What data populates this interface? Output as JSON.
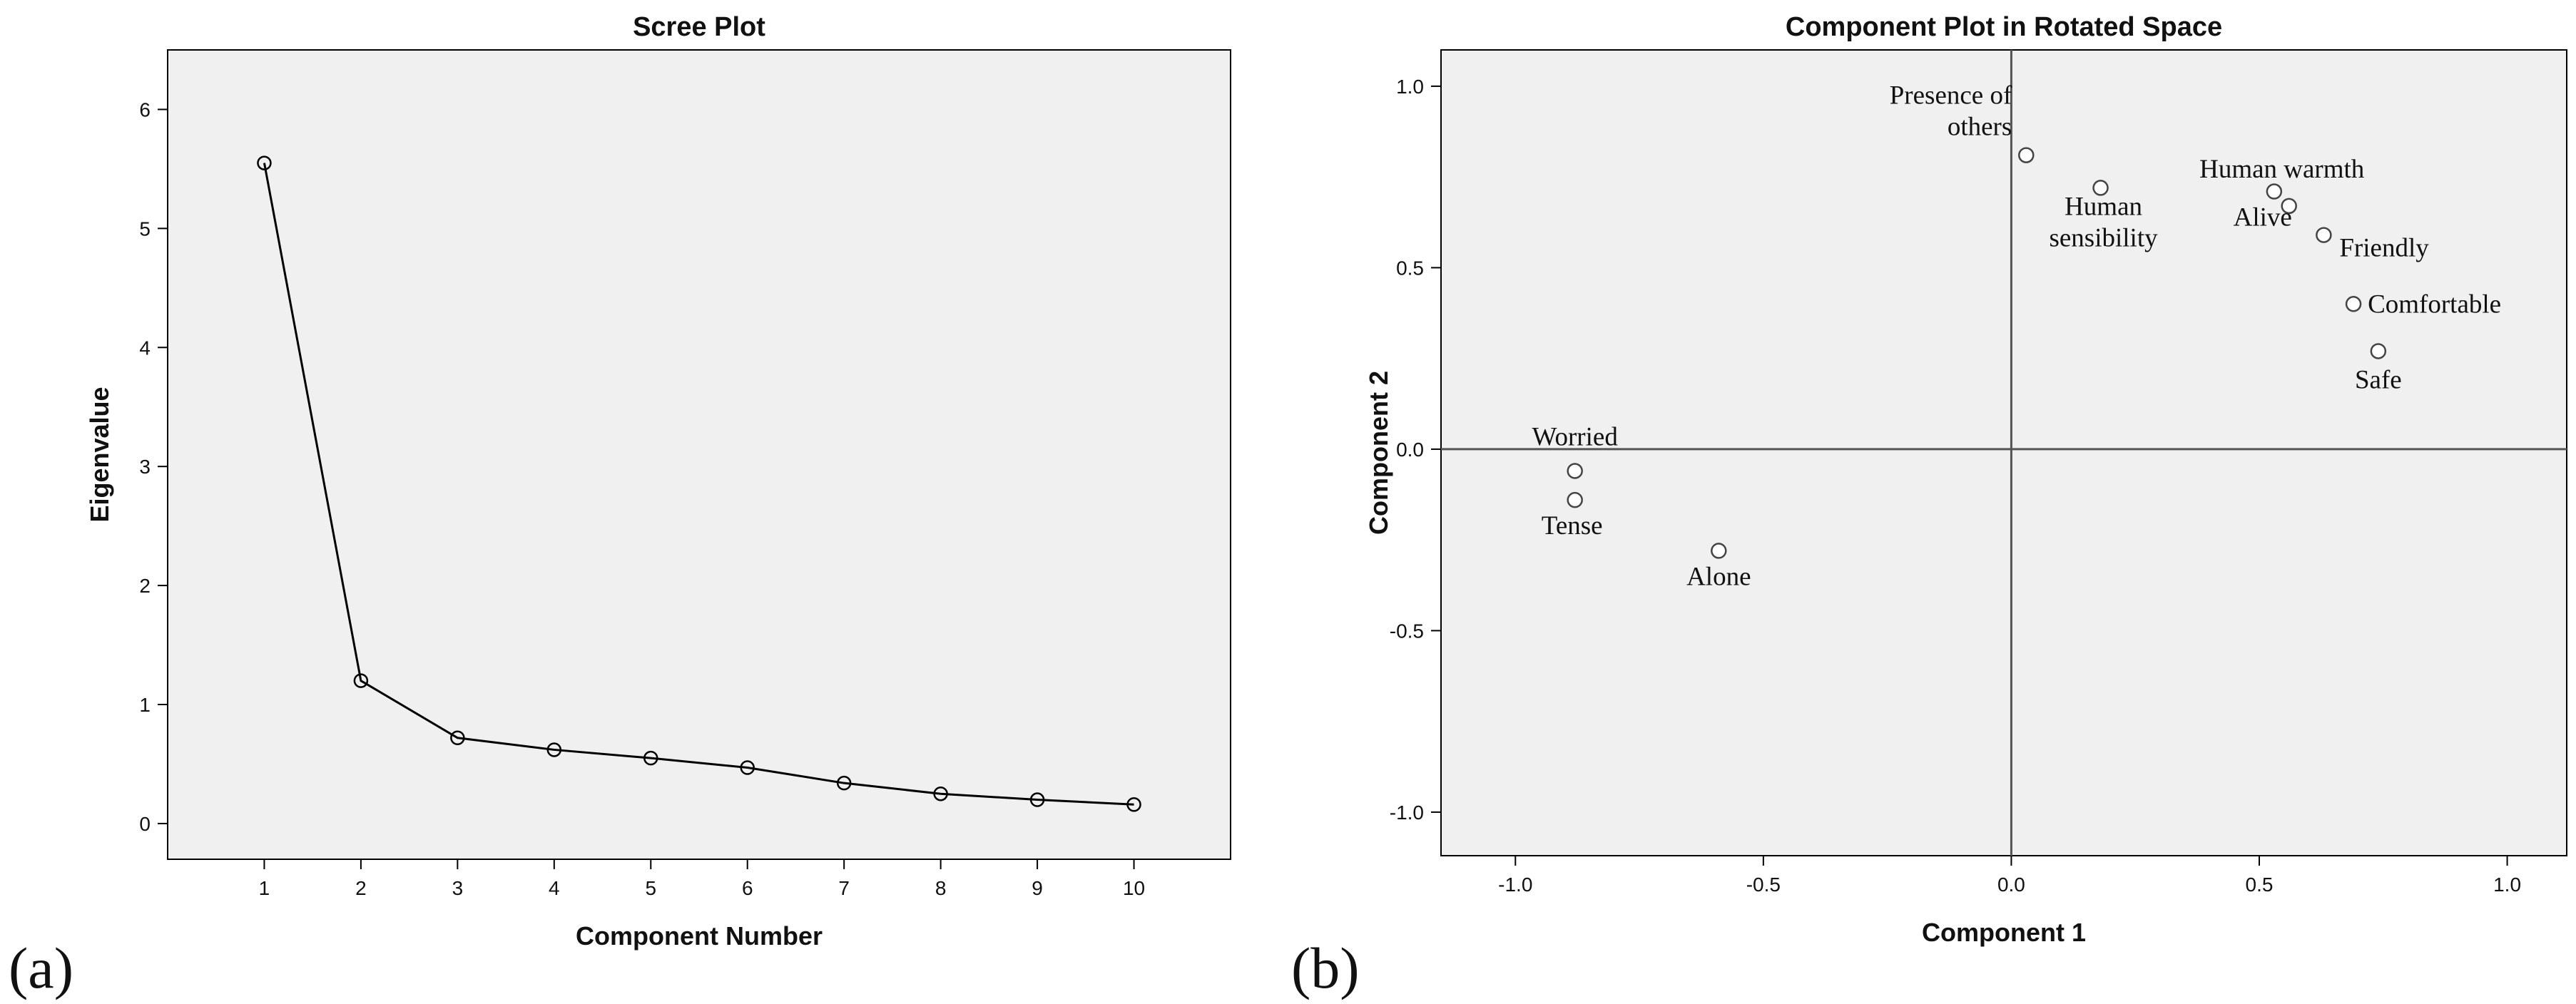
{
  "panel_labels": [
    "(a)",
    "(b)"
  ],
  "colors": {
    "plot_background": "#f0f0f0",
    "frame": "#000000",
    "line": "#000000",
    "marker": "#ffffff",
    "text": "#111111"
  },
  "chart_data": [
    {
      "type": "line",
      "title": "Scree Plot",
      "xlabel": "Component Number",
      "ylabel": "Eigenvalue",
      "x": [
        1,
        2,
        3,
        4,
        5,
        6,
        7,
        8,
        9,
        10
      ],
      "values": [
        5.55,
        1.2,
        0.72,
        0.62,
        0.55,
        0.47,
        0.34,
        0.25,
        0.2,
        0.16
      ],
      "xlim": [
        0,
        11
      ],
      "ylim": [
        -0.3,
        6.5
      ],
      "x_ticks": [
        "1",
        "2",
        "3",
        "4",
        "5",
        "6",
        "7",
        "8",
        "9",
        "10"
      ],
      "y_ticks": [
        "0",
        "1",
        "2",
        "3",
        "4",
        "5",
        "6"
      ],
      "marker": "open-circle",
      "grid": false,
      "legend": "none"
    },
    {
      "type": "scatter",
      "title": "Component Plot in Rotated Space",
      "xlabel": "Component 1",
      "ylabel": "Component 2",
      "xlim": [
        -1.15,
        1.12
      ],
      "ylim": [
        -1.12,
        1.1
      ],
      "x_ticks": [
        "-1.0",
        "-0.5",
        "0.0",
        "0.5",
        "1.0"
      ],
      "y_ticks": [
        "-1.0",
        "-0.5",
        "0.0",
        "0.5",
        "1.0"
      ],
      "reference_lines": {
        "x": 0,
        "y": 0
      },
      "grid": false,
      "legend": "none",
      "points": [
        {
          "label": "Presence of others",
          "label_lines": [
            "Presence of",
            "others"
          ],
          "x": 0.03,
          "y": 0.81
        },
        {
          "label": "Human sensibility",
          "label_lines": [
            "Human",
            "sensibility"
          ],
          "x": 0.18,
          "y": 0.72
        },
        {
          "label": "Human warmth",
          "label_lines": [
            "Human warmth"
          ],
          "x": 0.56,
          "y": 0.67
        },
        {
          "label": "Alive",
          "label_lines": [
            "Alive"
          ],
          "x": 0.53,
          "y": 0.71
        },
        {
          "label": "Friendly",
          "label_lines": [
            "Friendly"
          ],
          "x": 0.63,
          "y": 0.59
        },
        {
          "label": "Comfortable",
          "label_lines": [
            "Comfortable"
          ],
          "x": 0.69,
          "y": 0.4
        },
        {
          "label": "Safe",
          "label_lines": [
            "Safe"
          ],
          "x": 0.74,
          "y": 0.27
        },
        {
          "label": "Worried",
          "label_lines": [
            "Worried"
          ],
          "x": -0.88,
          "y": -0.06
        },
        {
          "label": "Tense",
          "label_lines": [
            "Tense"
          ],
          "x": -0.88,
          "y": -0.14
        },
        {
          "label": "Alone",
          "label_lines": [
            "Alone"
          ],
          "x": -0.59,
          "y": -0.28
        }
      ]
    }
  ]
}
